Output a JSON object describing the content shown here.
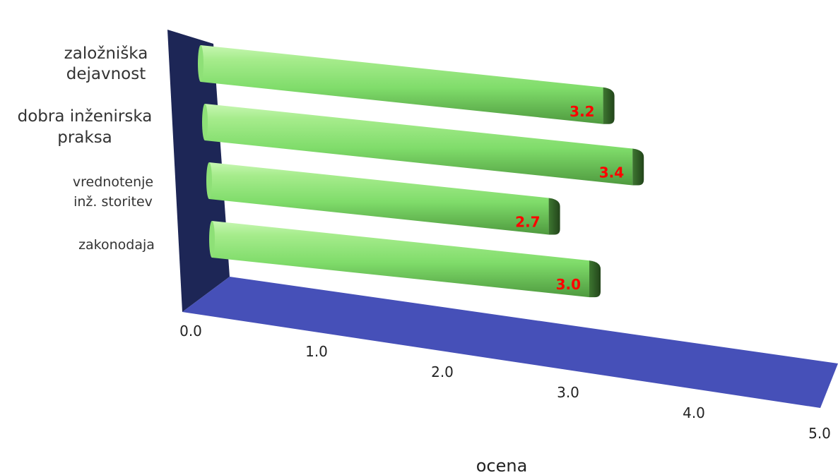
{
  "chart_data": {
    "type": "bar",
    "orientation": "horizontal",
    "style": "3d",
    "categories": [
      [
        "založniška",
        "dejavnost"
      ],
      [
        "dobra inženirska",
        "praksa"
      ],
      [
        "vrednotenje",
        "inž. storitev"
      ],
      [
        "zakonodaja"
      ]
    ],
    "values": [
      3.2,
      3.4,
      2.7,
      3.0
    ],
    "value_labels": [
      "3.2",
      "3.4",
      "2.7",
      "3.0"
    ],
    "x_ticks": [
      "0.0",
      "1.0",
      "2.0",
      "3.0",
      "4.0",
      "5.0"
    ],
    "xlim": [
      0,
      5
    ],
    "xlabel": "ocena",
    "title": "",
    "colors": {
      "bar_top": "#a6ec8c",
      "bar_face": "#7fdc6a",
      "bar_dark": "#4f9a3f",
      "bar_cap": "#2e5a22",
      "back_wall": "#1d2656",
      "floor": "#4650b8",
      "value_label": "#ff0000"
    }
  }
}
